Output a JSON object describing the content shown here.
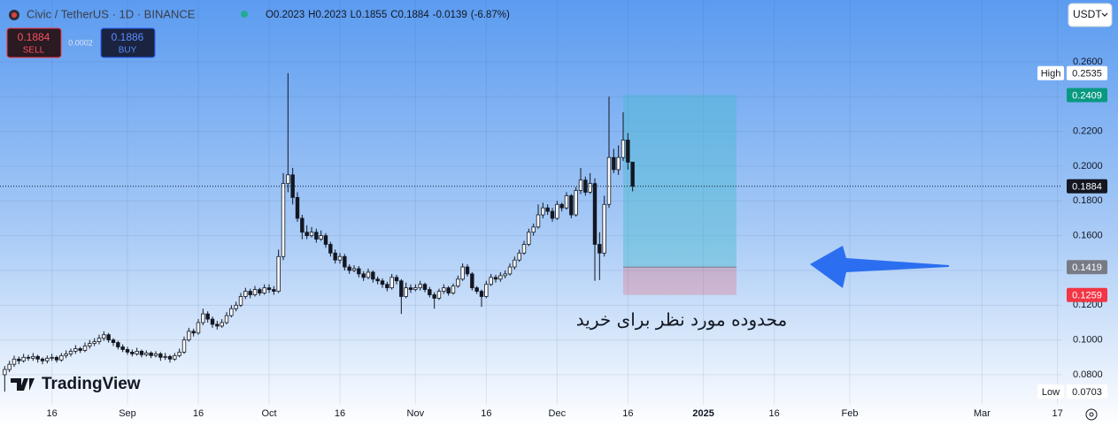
{
  "chart_data": {
    "type": "candlestick",
    "title": "Civic / TetherUS · 1D · BINANCE",
    "legend": {
      "o_label": "O",
      "open": 0.2023,
      "h_label": "H",
      "high": 0.2023,
      "l_label": "L",
      "low": 0.1855,
      "c_label": "C",
      "close": 0.1884,
      "change": -0.0139,
      "change_pct": "(-6.87%)"
    },
    "x": [
      "2024-08-06",
      "2024-08-07",
      "2024-08-08",
      "2024-08-09",
      "2024-08-10",
      "2024-08-11",
      "2024-08-12",
      "2024-08-13",
      "2024-08-14",
      "2024-08-15",
      "2024-08-16",
      "2024-08-17",
      "2024-08-18",
      "2024-08-19",
      "2024-08-20",
      "2024-08-21",
      "2024-08-22",
      "2024-08-23",
      "2024-08-24",
      "2024-08-25",
      "2024-08-26",
      "2024-08-27",
      "2024-08-28",
      "2024-08-29",
      "2024-08-30",
      "2024-08-31",
      "2024-09-01",
      "2024-09-02",
      "2024-09-03",
      "2024-09-04",
      "2024-09-05",
      "2024-09-06",
      "2024-09-07",
      "2024-09-08",
      "2024-09-09",
      "2024-09-10",
      "2024-09-11",
      "2024-09-12",
      "2024-09-13",
      "2024-09-14",
      "2024-09-15",
      "2024-09-16",
      "2024-09-17",
      "2024-09-18",
      "2024-09-19",
      "2024-09-20",
      "2024-09-21",
      "2024-09-22",
      "2024-09-23",
      "2024-09-24",
      "2024-09-25",
      "2024-09-26",
      "2024-09-27",
      "2024-09-28",
      "2024-09-29",
      "2024-09-30",
      "2024-10-01",
      "2024-10-02",
      "2024-10-03",
      "2024-10-04",
      "2024-10-05",
      "2024-10-06",
      "2024-10-07",
      "2024-10-08",
      "2024-10-09",
      "2024-10-10",
      "2024-10-11",
      "2024-10-12",
      "2024-10-13",
      "2024-10-14",
      "2024-10-15",
      "2024-10-16",
      "2024-10-17",
      "2024-10-18",
      "2024-10-19",
      "2024-10-20",
      "2024-10-21",
      "2024-10-22",
      "2024-10-23",
      "2024-10-24",
      "2024-10-25",
      "2024-10-26",
      "2024-10-27",
      "2024-10-28",
      "2024-10-29",
      "2024-10-30",
      "2024-10-31",
      "2024-11-01",
      "2024-11-02",
      "2024-11-03",
      "2024-11-04",
      "2024-11-05",
      "2024-11-06",
      "2024-11-07",
      "2024-11-08",
      "2024-11-09",
      "2024-11-10",
      "2024-11-11",
      "2024-11-12",
      "2024-11-13",
      "2024-11-14",
      "2024-11-15",
      "2024-11-16",
      "2024-11-17",
      "2024-11-18",
      "2024-11-19",
      "2024-11-20",
      "2024-11-21",
      "2024-11-22",
      "2024-11-23",
      "2024-11-24",
      "2024-11-25",
      "2024-11-26",
      "2024-11-27",
      "2024-11-28",
      "2024-11-29",
      "2024-11-30",
      "2024-12-01",
      "2024-12-02",
      "2024-12-03",
      "2024-12-04",
      "2024-12-05",
      "2024-12-06",
      "2024-12-07",
      "2024-12-08",
      "2024-12-09",
      "2024-12-10",
      "2024-12-11",
      "2024-12-12",
      "2024-12-13",
      "2024-12-14",
      "2024-12-15",
      "2024-12-16",
      "2024-12-17"
    ],
    "ohlc": [
      [
        0.08,
        0.085,
        0.0703,
        0.083
      ],
      [
        0.083,
        0.088,
        0.0815,
        0.086
      ],
      [
        0.086,
        0.091,
        0.0845,
        0.089
      ],
      [
        0.089,
        0.0905,
        0.086,
        0.088
      ],
      [
        0.088,
        0.092,
        0.087,
        0.09
      ],
      [
        0.09,
        0.0915,
        0.088,
        0.0895
      ],
      [
        0.0895,
        0.0925,
        0.088,
        0.0905
      ],
      [
        0.0905,
        0.0915,
        0.087,
        0.089
      ],
      [
        0.089,
        0.09,
        0.086,
        0.088
      ],
      [
        0.088,
        0.091,
        0.0865,
        0.0895
      ],
      [
        0.0895,
        0.092,
        0.088,
        0.09
      ],
      [
        0.09,
        0.091,
        0.087,
        0.0885
      ],
      [
        0.0885,
        0.0925,
        0.0875,
        0.091
      ],
      [
        0.091,
        0.094,
        0.0895,
        0.092
      ],
      [
        0.092,
        0.095,
        0.0905,
        0.0935
      ],
      [
        0.0935,
        0.097,
        0.092,
        0.095
      ],
      [
        0.095,
        0.096,
        0.0925,
        0.094
      ],
      [
        0.094,
        0.0985,
        0.093,
        0.0965
      ],
      [
        0.0965,
        0.1,
        0.095,
        0.098
      ],
      [
        0.098,
        0.101,
        0.0965,
        0.099
      ],
      [
        0.099,
        0.103,
        0.0975,
        0.101
      ],
      [
        0.101,
        0.105,
        0.0995,
        0.103
      ],
      [
        0.103,
        0.104,
        0.0985,
        0.1
      ],
      [
        0.1,
        0.101,
        0.0965,
        0.0985
      ],
      [
        0.0985,
        0.0995,
        0.0945,
        0.096
      ],
      [
        0.096,
        0.0975,
        0.093,
        0.0945
      ],
      [
        0.0945,
        0.096,
        0.0915,
        0.093
      ],
      [
        0.093,
        0.0945,
        0.0905,
        0.092
      ],
      [
        0.092,
        0.0955,
        0.091,
        0.0935
      ],
      [
        0.0935,
        0.0945,
        0.09,
        0.0915
      ],
      [
        0.0915,
        0.094,
        0.0905,
        0.0925
      ],
      [
        0.0925,
        0.0935,
        0.0895,
        0.091
      ],
      [
        0.091,
        0.0935,
        0.09,
        0.092
      ],
      [
        0.092,
        0.093,
        0.088,
        0.09
      ],
      [
        0.09,
        0.0925,
        0.0885,
        0.0905
      ],
      [
        0.0905,
        0.0915,
        0.087,
        0.089
      ],
      [
        0.089,
        0.0925,
        0.088,
        0.091
      ],
      [
        0.091,
        0.095,
        0.09,
        0.093
      ],
      [
        0.093,
        0.102,
        0.092,
        0.1
      ],
      [
        0.1,
        0.107,
        0.099,
        0.105
      ],
      [
        0.105,
        0.1065,
        0.102,
        0.104
      ],
      [
        0.104,
        0.112,
        0.103,
        0.11
      ],
      [
        0.11,
        0.118,
        0.1085,
        0.115
      ],
      [
        0.115,
        0.1165,
        0.11,
        0.112
      ],
      [
        0.112,
        0.1135,
        0.107,
        0.109
      ],
      [
        0.109,
        0.111,
        0.106,
        0.108
      ],
      [
        0.108,
        0.112,
        0.107,
        0.11
      ],
      [
        0.11,
        0.116,
        0.109,
        0.114
      ],
      [
        0.114,
        0.12,
        0.113,
        0.118
      ],
      [
        0.118,
        0.122,
        0.1165,
        0.12
      ],
      [
        0.12,
        0.127,
        0.119,
        0.125
      ],
      [
        0.125,
        0.13,
        0.1235,
        0.128
      ],
      [
        0.128,
        0.1295,
        0.124,
        0.126
      ],
      [
        0.126,
        0.131,
        0.125,
        0.129
      ],
      [
        0.129,
        0.13,
        0.1255,
        0.127
      ],
      [
        0.127,
        0.132,
        0.126,
        0.13
      ],
      [
        0.13,
        0.132,
        0.127,
        0.129
      ],
      [
        0.129,
        0.131,
        0.126,
        0.128
      ],
      [
        0.128,
        0.152,
        0.127,
        0.148
      ],
      [
        0.148,
        0.196,
        0.146,
        0.19
      ],
      [
        0.19,
        0.2535,
        0.185,
        0.195
      ],
      [
        0.195,
        0.199,
        0.178,
        0.182
      ],
      [
        0.182,
        0.185,
        0.168,
        0.17
      ],
      [
        0.17,
        0.172,
        0.158,
        0.162
      ],
      [
        0.162,
        0.166,
        0.158,
        0.16
      ],
      [
        0.16,
        0.165,
        0.159,
        0.162
      ],
      [
        0.162,
        0.164,
        0.156,
        0.158
      ],
      [
        0.158,
        0.163,
        0.157,
        0.16
      ],
      [
        0.16,
        0.1615,
        0.153,
        0.155
      ],
      [
        0.155,
        0.1565,
        0.148,
        0.15
      ],
      [
        0.15,
        0.152,
        0.144,
        0.146
      ],
      [
        0.146,
        0.15,
        0.144,
        0.148
      ],
      [
        0.148,
        0.1495,
        0.14,
        0.142
      ],
      [
        0.142,
        0.1435,
        0.138,
        0.14
      ],
      [
        0.14,
        0.143,
        0.139,
        0.141
      ],
      [
        0.141,
        0.1425,
        0.136,
        0.138
      ],
      [
        0.138,
        0.1395,
        0.134,
        0.136
      ],
      [
        0.136,
        0.141,
        0.135,
        0.139
      ],
      [
        0.139,
        0.14,
        0.133,
        0.135
      ],
      [
        0.135,
        0.1365,
        0.132,
        0.134
      ],
      [
        0.134,
        0.1355,
        0.13,
        0.132
      ],
      [
        0.132,
        0.1335,
        0.128,
        0.13
      ],
      [
        0.13,
        0.138,
        0.129,
        0.136
      ],
      [
        0.136,
        0.1375,
        0.132,
        0.134
      ],
      [
        0.134,
        0.135,
        0.115,
        0.125
      ],
      [
        0.125,
        0.133,
        0.124,
        0.13
      ],
      [
        0.13,
        0.132,
        0.127,
        0.129
      ],
      [
        0.129,
        0.132,
        0.128,
        0.13
      ],
      [
        0.13,
        0.134,
        0.1285,
        0.132
      ],
      [
        0.132,
        0.133,
        0.1275,
        0.129
      ],
      [
        0.129,
        0.1305,
        0.1245,
        0.126
      ],
      [
        0.126,
        0.1275,
        0.118,
        0.124
      ],
      [
        0.124,
        0.1295,
        0.123,
        0.128
      ],
      [
        0.128,
        0.132,
        0.1265,
        0.13
      ],
      [
        0.13,
        0.131,
        0.1255,
        0.127
      ],
      [
        0.127,
        0.1325,
        0.126,
        0.131
      ],
      [
        0.131,
        0.137,
        0.13,
        0.135
      ],
      [
        0.135,
        0.144,
        0.134,
        0.142
      ],
      [
        0.142,
        0.1435,
        0.1365,
        0.138
      ],
      [
        0.138,
        0.139,
        0.1285,
        0.13
      ],
      [
        0.13,
        0.131,
        0.1265,
        0.128
      ],
      [
        0.128,
        0.129,
        0.119,
        0.125
      ],
      [
        0.125,
        0.134,
        0.124,
        0.132
      ],
      [
        0.132,
        0.138,
        0.131,
        0.136
      ],
      [
        0.136,
        0.1375,
        0.133,
        0.135
      ],
      [
        0.135,
        0.139,
        0.1335,
        0.137
      ],
      [
        0.137,
        0.14,
        0.1355,
        0.138
      ],
      [
        0.138,
        0.144,
        0.137,
        0.142
      ],
      [
        0.142,
        0.148,
        0.1405,
        0.146
      ],
      [
        0.146,
        0.152,
        0.145,
        0.15
      ],
      [
        0.15,
        0.157,
        0.149,
        0.155
      ],
      [
        0.155,
        0.164,
        0.154,
        0.162
      ],
      [
        0.162,
        0.167,
        0.16,
        0.165
      ],
      [
        0.165,
        0.178,
        0.164,
        0.172
      ],
      [
        0.172,
        0.179,
        0.17,
        0.176
      ],
      [
        0.176,
        0.178,
        0.172,
        0.174
      ],
      [
        0.174,
        0.176,
        0.168,
        0.17
      ],
      [
        0.17,
        0.18,
        0.169,
        0.178
      ],
      [
        0.178,
        0.179,
        0.174,
        0.176
      ],
      [
        0.176,
        0.185,
        0.175,
        0.183
      ],
      [
        0.183,
        0.184,
        0.17,
        0.172
      ],
      [
        0.172,
        0.188,
        0.171,
        0.186
      ],
      [
        0.186,
        0.199,
        0.184,
        0.192
      ],
      [
        0.192,
        0.194,
        0.183,
        0.185
      ],
      [
        0.185,
        0.196,
        0.184,
        0.19
      ],
      [
        0.19,
        0.193,
        0.134,
        0.155
      ],
      [
        0.155,
        0.162,
        0.1345,
        0.15
      ],
      [
        0.15,
        0.183,
        0.148,
        0.178
      ],
      [
        0.178,
        0.24,
        0.176,
        0.205
      ],
      [
        0.205,
        0.21,
        0.196,
        0.198
      ],
      [
        0.198,
        0.212,
        0.195,
        0.205
      ],
      [
        0.205,
        0.231,
        0.203,
        0.215
      ],
      [
        0.215,
        0.219,
        0.198,
        0.2023
      ],
      [
        0.2023,
        0.2023,
        0.1855,
        0.1884
      ]
    ],
    "colors": {
      "up": "#ffffff",
      "down": "#131722",
      "wick": "#131722"
    },
    "xlim": [
      "2024-08-05",
      "2025-03-18"
    ],
    "xticks": [
      {
        "value": "2024-08-16",
        "label": "16"
      },
      {
        "value": "2024-09-01",
        "label": "Sep"
      },
      {
        "value": "2024-09-16",
        "label": "16"
      },
      {
        "value": "2024-10-01",
        "label": "Oct"
      },
      {
        "value": "2024-10-16",
        "label": "16"
      },
      {
        "value": "2024-11-01",
        "label": "Nov"
      },
      {
        "value": "2024-11-16",
        "label": "16"
      },
      {
        "value": "2024-12-01",
        "label": "Dec"
      },
      {
        "value": "2024-12-16",
        "label": "16"
      },
      {
        "value": "2025-01-01",
        "label": "2025"
      },
      {
        "value": "2025-01-16",
        "label": "16"
      },
      {
        "value": "2025-02-01",
        "label": "Feb"
      },
      {
        "value": "2025-03-01",
        "label": "Mar"
      },
      {
        "value": "2025-03-17",
        "label": "17"
      }
    ],
    "ylim": [
      0.0627,
      0.2956
    ],
    "yticks": [
      {
        "value": 0.08,
        "label": "0.0800"
      },
      {
        "value": 0.1,
        "label": "0.1000"
      },
      {
        "value": 0.12,
        "label": "0.1200"
      },
      {
        "value": 0.14,
        "label": "0.1400"
      },
      {
        "value": 0.16,
        "label": "0.1600"
      },
      {
        "value": 0.18,
        "label": "0.1800"
      },
      {
        "value": 0.2,
        "label": "0.2000"
      },
      {
        "value": 0.22,
        "label": "0.2200"
      },
      {
        "value": 0.24,
        "label": "0.2400"
      },
      {
        "value": 0.26,
        "label": "0.2600"
      }
    ],
    "grid": true,
    "price_labels": [
      {
        "label": "High",
        "value": 0.2535,
        "color": "#ffffff",
        "text_color": "#131722"
      },
      {
        "value": 0.2409,
        "color": "#089981",
        "text_color": "#ffffff",
        "role": "target"
      },
      {
        "value": 0.1884,
        "color": "#131722",
        "text_color": "#ffffff",
        "line": "dotted"
      },
      {
        "value": 0.1419,
        "color": "#787b86",
        "text_color": "#ffffff",
        "role": "entry"
      },
      {
        "value": 0.1259,
        "color": "#f23645",
        "text_color": "#ffffff",
        "role": "stop"
      },
      {
        "label": "Low",
        "value": 0.0703,
        "color": "#ffffff",
        "text_color": "#131722"
      }
    ],
    "position": {
      "start": "2024-12-15",
      "end": "2025-01-08",
      "profit_color": "rgba(70,185,205,0.42)",
      "loss_color": "rgba(242,54,69,0.22)"
    },
    "annotation": "محدوده مورد نظر برای خرید"
  },
  "trade_panel": {
    "sell_price": 0.1884,
    "sell_label": "SELL",
    "spread": 0.0002,
    "buy_price": 0.1886,
    "buy_label": "BUY"
  },
  "currency": "USDT",
  "watermark": "TradingView"
}
